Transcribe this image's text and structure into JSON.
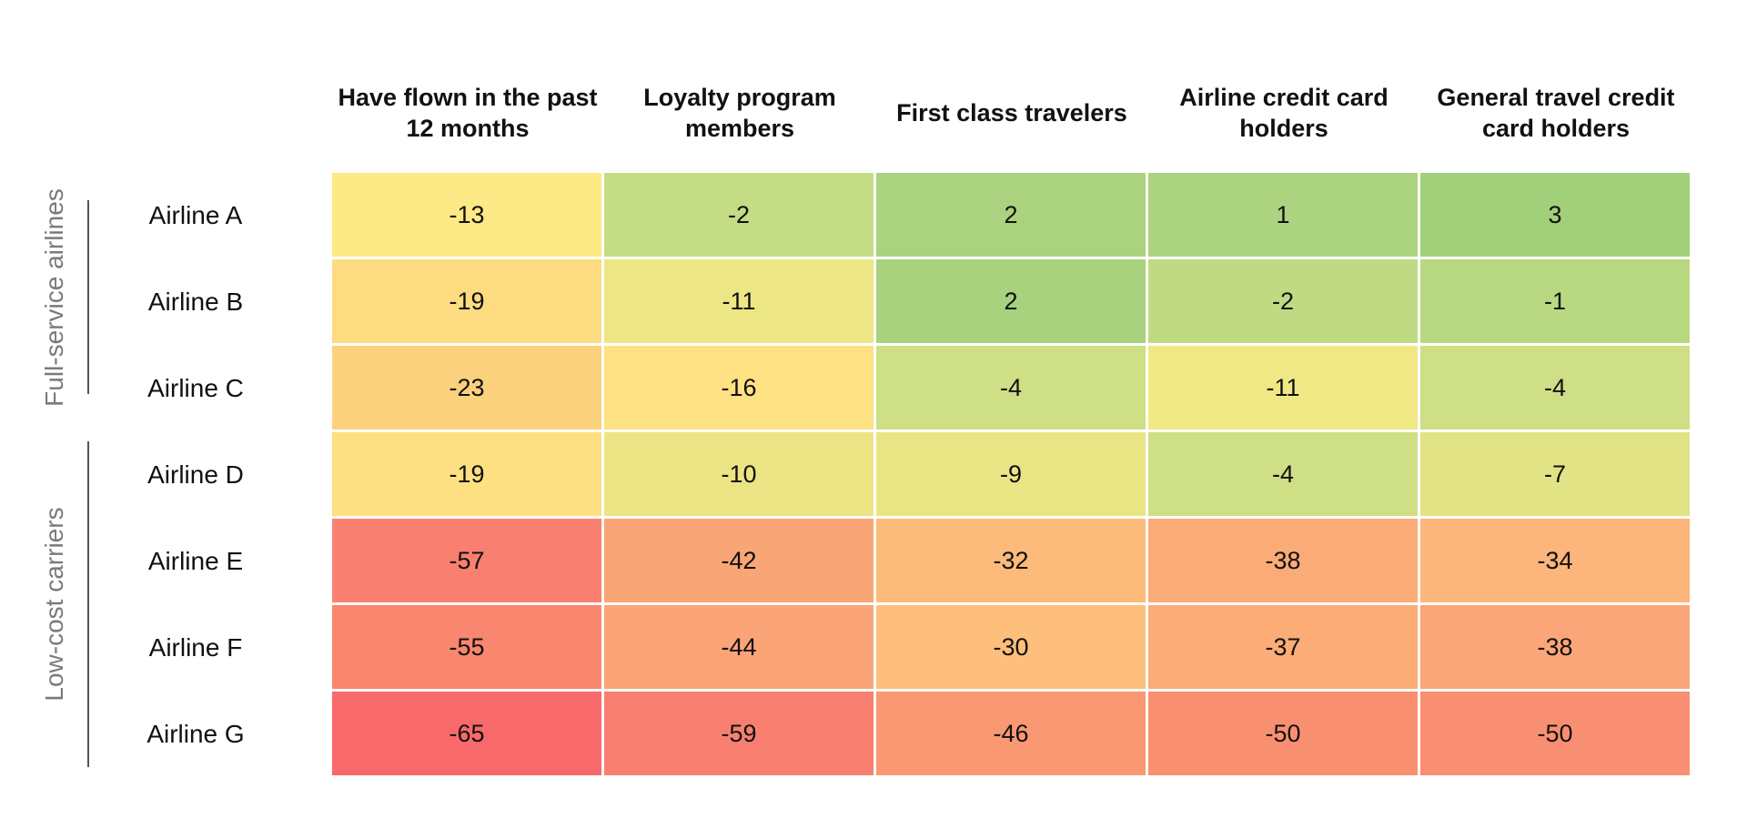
{
  "chart_data": {
    "type": "heatmap",
    "columns": [
      "Have flown in the past 12 months",
      "Loyalty program members",
      "First class travelers",
      "Airline credit card holders",
      "General travel credit card holders"
    ],
    "rows": [
      "Airline A",
      "Airline B",
      "Airline C",
      "Airline D",
      "Airline E",
      "Airline F",
      "Airline G"
    ],
    "values": [
      [
        -13,
        -2,
        2,
        1,
        3
      ],
      [
        -19,
        -11,
        2,
        -2,
        -1
      ],
      [
        -23,
        -16,
        -4,
        -11,
        -4
      ],
      [
        -19,
        -10,
        -9,
        -4,
        -7
      ],
      [
        -57,
        -42,
        -32,
        -38,
        -34
      ],
      [
        -55,
        -44,
        -30,
        -37,
        -38
      ],
      [
        -65,
        -59,
        -46,
        -50,
        -50
      ]
    ],
    "cell_colors": [
      [
        "#fde985",
        "#c5dc86",
        "#abd37f",
        "#acd37f",
        "#a2cf7a"
      ],
      [
        "#fddc81",
        "#ece784",
        "#a8d27e",
        "#bfda83",
        "#b9d882"
      ],
      [
        "#fcd17e",
        "#fde182",
        "#cedf86",
        "#f0e885",
        "#cedf86"
      ],
      [
        "#fde082",
        "#ece484",
        "#e9e585",
        "#cedf86",
        "#e2e384"
      ],
      [
        "#f98071",
        "#faa576",
        "#fcbb7b",
        "#fbab77",
        "#fcb57a"
      ],
      [
        "#f9866f",
        "#faa478",
        "#fdbf7b",
        "#fbac77",
        "#faa678"
      ],
      [
        "#f8696b",
        "#f87f70",
        "#f99873",
        "#f98f71",
        "#f98f72"
      ]
    ],
    "groups": [
      {
        "label": "Full-service airlines",
        "rows": [
          0,
          2
        ]
      },
      {
        "label": "Low-cost carriers",
        "rows": [
          3,
          6
        ]
      }
    ],
    "color_scale": {
      "low": "#f8696b",
      "mid": "#fde985",
      "high": "#a2cf7a"
    },
    "legend": "none"
  }
}
